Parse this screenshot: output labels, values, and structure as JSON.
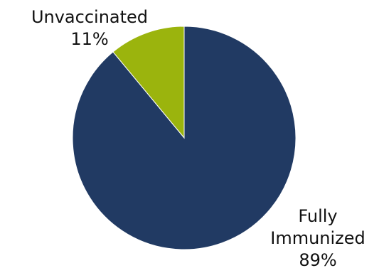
{
  "chart_data": {
    "type": "pie",
    "title": "",
    "slices": [
      {
        "label_lines": [
          "Unvaccinated",
          "11%"
        ],
        "category": "Unvaccinated",
        "value": 11,
        "color": "#9BB40D"
      },
      {
        "label_lines": [
          "Fully",
          "Immunized",
          "89%"
        ],
        "category": "Fully Immunized",
        "value": 89,
        "color": "#213A63"
      }
    ]
  }
}
